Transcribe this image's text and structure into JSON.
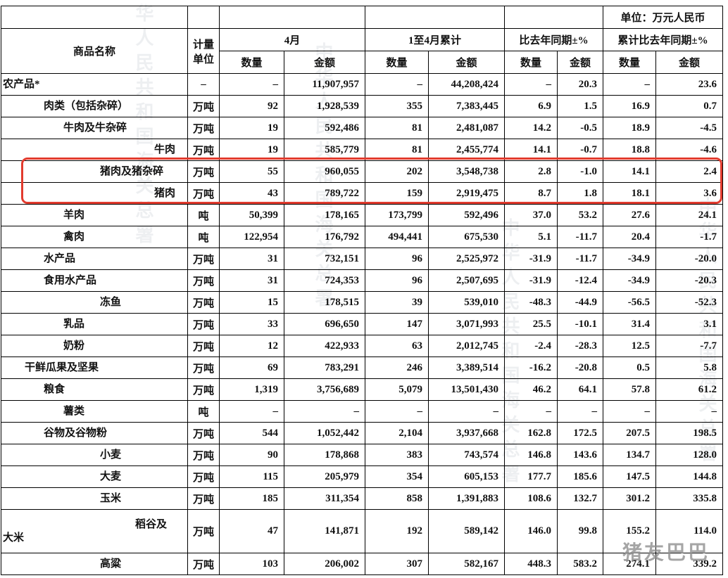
{
  "meta": {
    "unit_note": "单位：万元人民币"
  },
  "header": {
    "commodity_label": "商品名称",
    "unit_label": "计量单位",
    "unit_label_lines": [
      "计量",
      "单位"
    ],
    "groups": [
      "4月",
      "1至4月累计",
      "比去年同期±%",
      "累计比去年同期±%"
    ],
    "sub": [
      "数量",
      "金额"
    ]
  },
  "highlight": {
    "color": "#e23b2e",
    "rows": [
      "猪肉及猪杂碎",
      "猪肉"
    ]
  },
  "watermarks": {
    "stamp": "中华人民共和国海关总署",
    "corner": "猪友巴巴"
  },
  "rows": [
    {
      "name": "农产品*",
      "indent": 0,
      "unit": "–",
      "values": [
        "–",
        "11,907,957",
        "–",
        "44,208,424",
        "–",
        "20.3",
        "–",
        "23.6"
      ]
    },
    {
      "name": "肉类（包括杂碎）",
      "indent": 2,
      "unit": "万吨",
      "values": [
        "92",
        "1,928,539",
        "355",
        "7,383,445",
        "6.9",
        "1.5",
        "16.9",
        "0.7"
      ]
    },
    {
      "name": "牛肉及牛杂碎",
      "indent": 3,
      "unit": "万吨",
      "values": [
        "19",
        "592,486",
        "81",
        "2,481,087",
        "14.2",
        "-0.5",
        "18.9",
        "-4.5"
      ]
    },
    {
      "name": "牛肉",
      "indent": 6,
      "unit": "万吨",
      "values": [
        "19",
        "585,779",
        "81",
        "2,455,774",
        "14.1",
        "-0.7",
        "18.8",
        "-4.6"
      ]
    },
    {
      "name": "猪肉及猪杂碎",
      "indent": 4,
      "unit": "万吨",
      "highlight": true,
      "values": [
        "55",
        "960,055",
        "202",
        "3,548,738",
        "2.8",
        "-1.0",
        "14.1",
        "2.4"
      ]
    },
    {
      "name": "猪肉",
      "indent": 6,
      "unit": "万吨",
      "highlight": true,
      "values": [
        "43",
        "789,722",
        "159",
        "2,919,475",
        "8.7",
        "1.8",
        "18.1",
        "3.6"
      ]
    },
    {
      "name": "羊肉",
      "indent": 3,
      "unit": "吨",
      "values": [
        "50,399",
        "178,165",
        "173,799",
        "592,496",
        "37.0",
        "53.2",
        "27.6",
        "24.1"
      ]
    },
    {
      "name": "禽肉",
      "indent": 3,
      "unit": "吨",
      "values": [
        "122,954",
        "176,792",
        "494,441",
        "675,530",
        "5.1",
        "-11.7",
        "20.4",
        "-1.7"
      ]
    },
    {
      "name": "水产品",
      "indent": 2,
      "unit": "万吨",
      "values": [
        "31",
        "732,151",
        "96",
        "2,525,972",
        "-31.9",
        "-11.7",
        "-34.9",
        "-20.0"
      ]
    },
    {
      "name": "食用水产品",
      "indent": 2,
      "unit": "万吨",
      "values": [
        "31",
        "724,353",
        "96",
        "2,507,695",
        "-31.9",
        "-12.4",
        "-34.9",
        "-20.3"
      ]
    },
    {
      "name": "冻鱼",
      "indent": 4,
      "unit": "万吨",
      "values": [
        "15",
        "178,515",
        "39",
        "539,010",
        "-48.3",
        "-44.9",
        "-56.5",
        "-52.3"
      ]
    },
    {
      "name": "乳品",
      "indent": 3,
      "unit": "万吨",
      "values": [
        "33",
        "696,650",
        "147",
        "3,071,993",
        "25.5",
        "-10.1",
        "31.4",
        "3.1"
      ]
    },
    {
      "name": "奶粉",
      "indent": 3,
      "unit": "万吨",
      "values": [
        "12",
        "422,933",
        "63",
        "2,012,745",
        "-2.4",
        "-28.3",
        "12.5",
        "-7.7"
      ]
    },
    {
      "name": "干鲜瓜果及坚果",
      "indent": 1,
      "unit": "万吨",
      "values": [
        "69",
        "783,291",
        "246",
        "3,389,514",
        "-16.2",
        "-20.8",
        "0.5",
        "5.8"
      ]
    },
    {
      "name": "粮食",
      "indent": 2,
      "unit": "万吨",
      "values": [
        "1,319",
        "3,756,689",
        "5,079",
        "13,501,430",
        "46.2",
        "64.1",
        "57.8",
        "61.2"
      ]
    },
    {
      "name": "薯类",
      "indent": 3,
      "unit": "吨",
      "values": [
        "–",
        "–",
        "–",
        "–",
        "–",
        "–",
        "–",
        "–"
      ]
    },
    {
      "name": "谷物及谷物粉",
      "indent": 2,
      "unit": "万吨",
      "values": [
        "544",
        "1,052,442",
        "2,104",
        "3,937,668",
        "162.8",
        "172.5",
        "207.5",
        "198.5"
      ]
    },
    {
      "name": "小麦",
      "indent": 4,
      "unit": "万吨",
      "values": [
        "90",
        "178,868",
        "383",
        "743,574",
        "146.8",
        "143.6",
        "134.7",
        "128.0"
      ]
    },
    {
      "name": "大麦",
      "indent": 4,
      "unit": "万吨",
      "values": [
        "115",
        "205,979",
        "354",
        "605,153",
        "177.7",
        "185.6",
        "147.5",
        "144.8"
      ]
    },
    {
      "name": "玉米",
      "indent": 4,
      "unit": "万吨",
      "values": [
        "185",
        "311,354",
        "858",
        "1,391,883",
        "108.6",
        "132.7",
        "301.2",
        "335.8"
      ]
    },
    {
      "name": "稻谷及大米",
      "wrap": [
        "稻谷及",
        "大米"
      ],
      "indent": 5,
      "tall": true,
      "unit": "万吨",
      "values": [
        "47",
        "141,871",
        "192",
        "589,142",
        "146.0",
        "99.8",
        "155.2",
        "114.0"
      ]
    },
    {
      "name": "高粱",
      "indent": 4,
      "unit": "万吨",
      "values": [
        "103",
        "206,002",
        "307",
        "582,167",
        "448.3",
        "583.2",
        "274.1",
        "339.2"
      ]
    }
  ]
}
